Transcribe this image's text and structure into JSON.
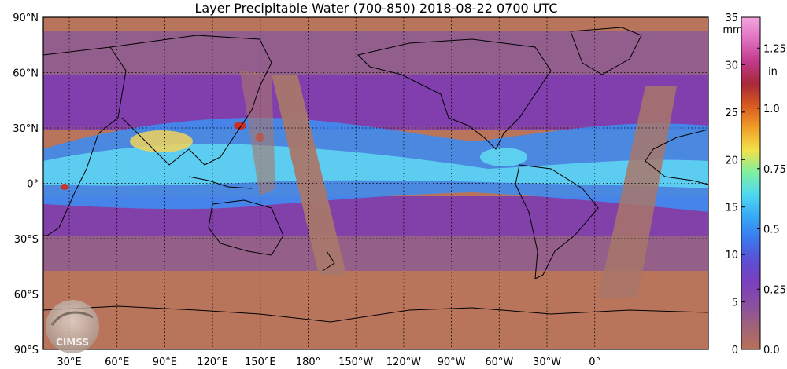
{
  "title": "Layer Precipitable Water (700-850)  2018-08-22 0700 UTC",
  "map": {
    "lat_ticks": [
      "90°N",
      "60°N",
      "30°N",
      "0°",
      "30°S",
      "60°S",
      "90°S"
    ],
    "lon_ticks": [
      "30°E",
      "60°E",
      "90°E",
      "120°E",
      "150°E",
      "180°",
      "150°W",
      "120°W",
      "90°W",
      "60°W",
      "30°W",
      "0°"
    ],
    "colors": {
      "dry": "#b9745c",
      "low": "#8b5a94",
      "mid": "#7a35b8",
      "moist": "#3f8cf0",
      "wet": "#5fd8f2",
      "very_wet": "#f0d25a",
      "extreme": "#c8322a",
      "gap": "#a8776a",
      "land_outline": "#000000"
    }
  },
  "logo": {
    "text": "CIMSS"
  },
  "colorbar": {
    "mm_label": "mm",
    "in_label": "in",
    "mm_ticks": [
      "35",
      "30",
      "25",
      "20",
      "15",
      "10",
      "5",
      "0"
    ],
    "in_ticks": [
      "1.25",
      "1.0",
      "0.75",
      "0.5",
      "0.25",
      "0.0"
    ],
    "stops": [
      "#b87058",
      "#a06378",
      "#8a4fa0",
      "#7b3fbd",
      "#5d4fd2",
      "#3a78ee",
      "#37a9f5",
      "#4fd9f0",
      "#7ef0a0",
      "#f3e14a",
      "#f0a028",
      "#d85a20",
      "#a8283a",
      "#c03a8a",
      "#e070c0",
      "#f4a6de"
    ]
  }
}
